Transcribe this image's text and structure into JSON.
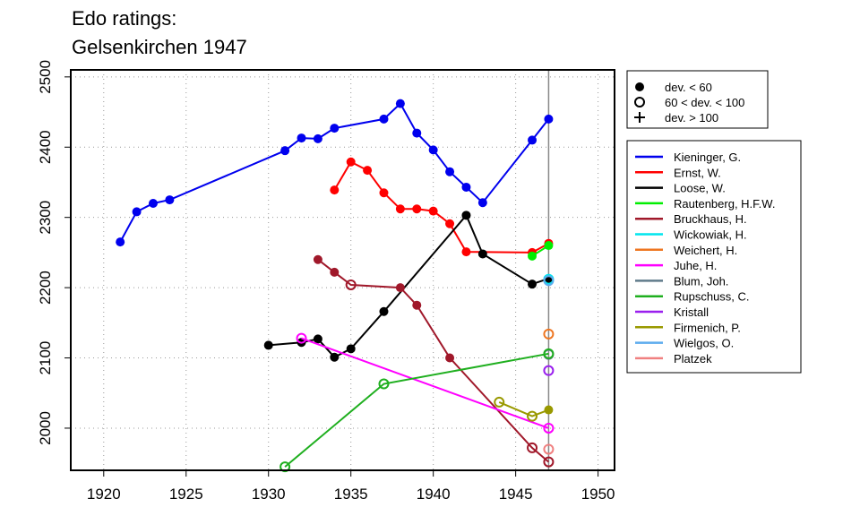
{
  "title": {
    "line1": "Edo ratings:",
    "line2": "Gelsenkirchen 1947"
  },
  "chart_data": {
    "type": "line",
    "xlim": [
      1918,
      1951
    ],
    "ylim": [
      1940,
      2510
    ],
    "x_ticks": [
      1920,
      1925,
      1930,
      1935,
      1940,
      1945,
      1950
    ],
    "y_ticks": [
      2000,
      2100,
      2200,
      2300,
      2400,
      2500
    ],
    "grid": true,
    "vertical_marker_x": 1947,
    "deviation_legend": [
      {
        "marker": "filled",
        "label": "dev. < 60"
      },
      {
        "marker": "open",
        "label": "60 < dev. < 100"
      },
      {
        "marker": "plus",
        "label": "dev. > 100"
      }
    ],
    "series": [
      {
        "name": "Kieninger, G.",
        "color": "#0000EE",
        "points": [
          {
            "x": 1921,
            "y": 2265,
            "m": "f"
          },
          {
            "x": 1922,
            "y": 2308,
            "m": "f"
          },
          {
            "x": 1923,
            "y": 2320,
            "m": "f"
          },
          {
            "x": 1924,
            "y": 2325,
            "m": "f"
          },
          {
            "x": 1931,
            "y": 2395,
            "m": "f"
          },
          {
            "x": 1932,
            "y": 2413,
            "m": "f"
          },
          {
            "x": 1933,
            "y": 2412,
            "m": "f"
          },
          {
            "x": 1934,
            "y": 2427,
            "m": "f"
          },
          {
            "x": 1937,
            "y": 2440,
            "m": "f"
          },
          {
            "x": 1938,
            "y": 2462,
            "m": "f"
          },
          {
            "x": 1939,
            "y": 2420,
            "m": "f"
          },
          {
            "x": 1940,
            "y": 2396,
            "m": "f"
          },
          {
            "x": 1941,
            "y": 2365,
            "m": "f"
          },
          {
            "x": 1942,
            "y": 2343,
            "m": "f"
          },
          {
            "x": 1943,
            "y": 2321,
            "m": "f"
          },
          {
            "x": 1946,
            "y": 2410,
            "m": "f"
          },
          {
            "x": 1947,
            "y": 2440,
            "m": "f"
          }
        ]
      },
      {
        "name": "Ernst, W.",
        "color": "#FF0000",
        "points": [
          {
            "x": 1934,
            "y": 2339,
            "m": "f"
          },
          {
            "x": 1935,
            "y": 2379,
            "m": "f"
          },
          {
            "x": 1936,
            "y": 2367,
            "m": "f"
          },
          {
            "x": 1937,
            "y": 2335,
            "m": "f"
          },
          {
            "x": 1938,
            "y": 2312,
            "m": "f"
          },
          {
            "x": 1939,
            "y": 2312,
            "m": "f"
          },
          {
            "x": 1940,
            "y": 2309,
            "m": "f"
          },
          {
            "x": 1941,
            "y": 2291,
            "m": "f"
          },
          {
            "x": 1942,
            "y": 2251,
            "m": "f"
          },
          {
            "x": 1946,
            "y": 2250,
            "m": "f"
          },
          {
            "x": 1947,
            "y": 2263,
            "m": "f"
          }
        ]
      },
      {
        "name": "Loose, W.",
        "color": "#000000",
        "points": [
          {
            "x": 1930,
            "y": 2118,
            "m": "f"
          },
          {
            "x": 1932,
            "y": 2122,
            "m": "f"
          },
          {
            "x": 1933,
            "y": 2127,
            "m": "f"
          },
          {
            "x": 1934,
            "y": 2101,
            "m": "f"
          },
          {
            "x": 1935,
            "y": 2113,
            "m": "f"
          },
          {
            "x": 1937,
            "y": 2166,
            "m": "f"
          },
          {
            "x": 1942,
            "y": 2303,
            "m": "f"
          },
          {
            "x": 1943,
            "y": 2248,
            "m": "f"
          },
          {
            "x": 1946,
            "y": 2205,
            "m": "f"
          },
          {
            "x": 1947,
            "y": 2213,
            "m": "f"
          }
        ]
      },
      {
        "name": "Rautenberg, H.F.W.",
        "color": "#00EE00",
        "points": [
          {
            "x": 1946,
            "y": 2245,
            "m": "f"
          },
          {
            "x": 1947,
            "y": 2260,
            "m": "f"
          }
        ]
      },
      {
        "name": "Bruckhaus, H.",
        "color": "#A0182A",
        "points": [
          {
            "x": 1933,
            "y": 2240,
            "m": "f"
          },
          {
            "x": 1934,
            "y": 2222,
            "m": "f"
          },
          {
            "x": 1935,
            "y": 2204,
            "m": "o"
          },
          {
            "x": 1938,
            "y": 2200,
            "m": "f"
          },
          {
            "x": 1939,
            "y": 2175,
            "m": "f"
          },
          {
            "x": 1941,
            "y": 2100,
            "m": "f"
          },
          {
            "x": 1946,
            "y": 1972,
            "m": "o"
          },
          {
            "x": 1947,
            "y": 1952,
            "m": "o"
          }
        ]
      },
      {
        "name": "Wickowiak, H.",
        "color": "#00E5EE",
        "points": [
          {
            "x": 1947,
            "y": 2212,
            "m": "o"
          }
        ]
      },
      {
        "name": "Weichert, H.",
        "color": "#EE7621",
        "points": [
          {
            "x": 1947,
            "y": 2134,
            "m": "o"
          }
        ]
      },
      {
        "name": "Juhe, H.",
        "color": "#FF00FF",
        "points": [
          {
            "x": 1932,
            "y": 2128,
            "m": "o"
          },
          {
            "x": 1947,
            "y": 2000,
            "m": "o"
          }
        ]
      },
      {
        "name": "Blum, Joh.",
        "color": "#607B8B",
        "points": [
          {
            "x": 1947,
            "y": 2105,
            "m": "o"
          }
        ]
      },
      {
        "name": "Rupschuss, C.",
        "color": "#1FAF1F",
        "points": [
          {
            "x": 1931,
            "y": 1945,
            "m": "o"
          },
          {
            "x": 1937,
            "y": 2063,
            "m": "o"
          },
          {
            "x": 1947,
            "y": 2106,
            "m": "o"
          }
        ]
      },
      {
        "name": "Kristall",
        "color": "#9A20EE",
        "points": [
          {
            "x": 1947,
            "y": 2082,
            "m": "o"
          }
        ]
      },
      {
        "name": "Firmenich, P.",
        "color": "#999900",
        "points": [
          {
            "x": 1944,
            "y": 2037,
            "m": "o"
          },
          {
            "x": 1946,
            "y": 2017,
            "m": "o"
          },
          {
            "x": 1947,
            "y": 2026,
            "m": "f"
          }
        ]
      },
      {
        "name": "Wielgos, O.",
        "color": "#5CACEE",
        "points": [
          {
            "x": 1947,
            "y": 2210,
            "m": "o"
          }
        ]
      },
      {
        "name": "Platzek",
        "color": "#F08080",
        "points": [
          {
            "x": 1947,
            "y": 1970,
            "m": "o"
          }
        ]
      }
    ]
  }
}
